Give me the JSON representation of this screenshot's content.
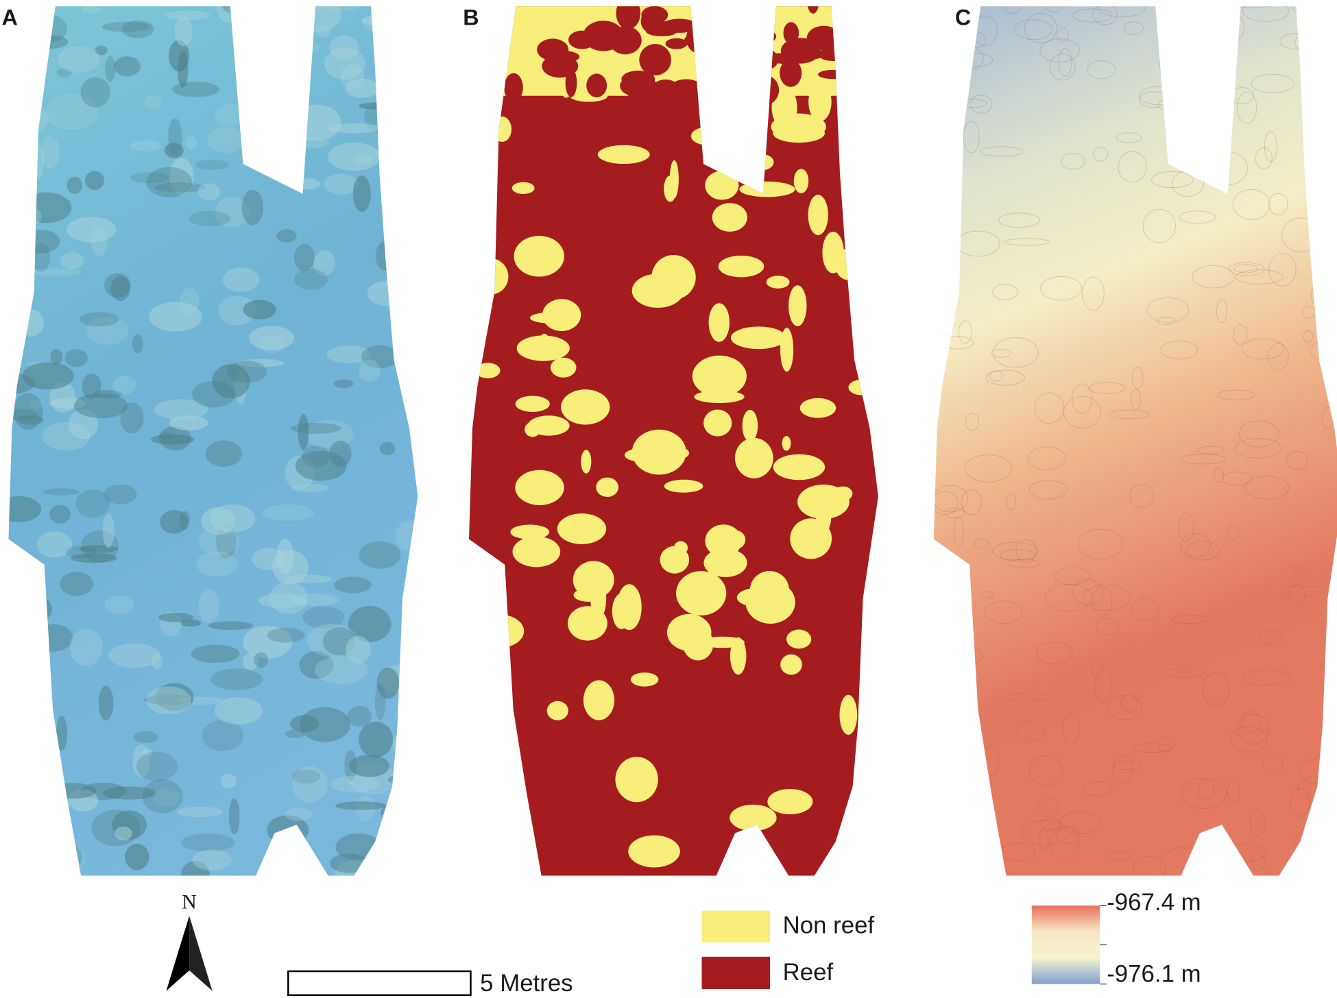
{
  "panels": [
    {
      "label": "A"
    },
    {
      "label": "B"
    },
    {
      "label": "C"
    }
  ],
  "north_arrow": {
    "label": "N"
  },
  "scale_bar": {
    "label": "5 Metres"
  },
  "classification_legend": [
    {
      "label": "Non reef",
      "color": "#f8ee7a"
    },
    {
      "label": "Reef",
      "color": "#a51c1f"
    }
  ],
  "depth_colorbar": {
    "top_label": "-967.4 m",
    "bottom_label": "-976.1 m",
    "colors": [
      "#e8705c",
      "#f7e8c4",
      "#f5f3cf",
      "#7f9fcf"
    ]
  }
}
